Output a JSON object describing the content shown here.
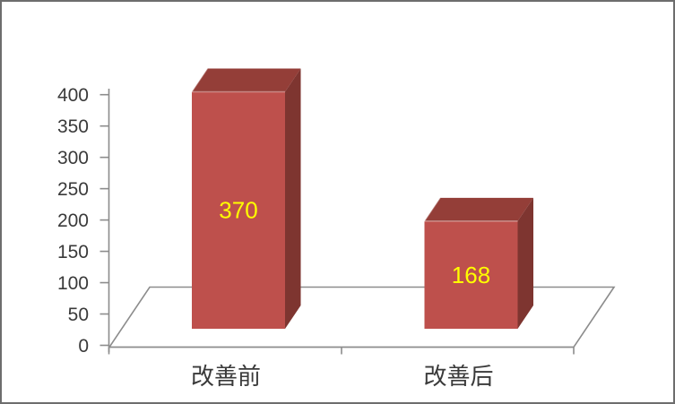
{
  "window": {
    "background_color": "#FFFFFF",
    "border_color": "#6D6D6D"
  },
  "chart_data": {
    "type": "bar",
    "projection": "3d",
    "title": "",
    "xlabel": "",
    "ylabel": "",
    "categories": [
      "改善前",
      "改善后"
    ],
    "values": [
      370,
      168
    ],
    "data_labels": [
      "370",
      "168"
    ],
    "y_ticks": [
      0,
      50,
      100,
      150,
      200,
      250,
      300,
      350,
      400
    ],
    "ylim": [
      0,
      400
    ],
    "y_tick_interval": 50,
    "legend": "none",
    "grid": "off",
    "colors": {
      "bar_front": "#BE504C",
      "bar_top": "#943E38",
      "bar_side": "#7E3530",
      "bar_edge_highlight": "rgba(255,255,255,0.35)",
      "data_label": "#FFFF00",
      "axis_line": "#8C8C8C",
      "text": "#3A3A3A"
    }
  }
}
